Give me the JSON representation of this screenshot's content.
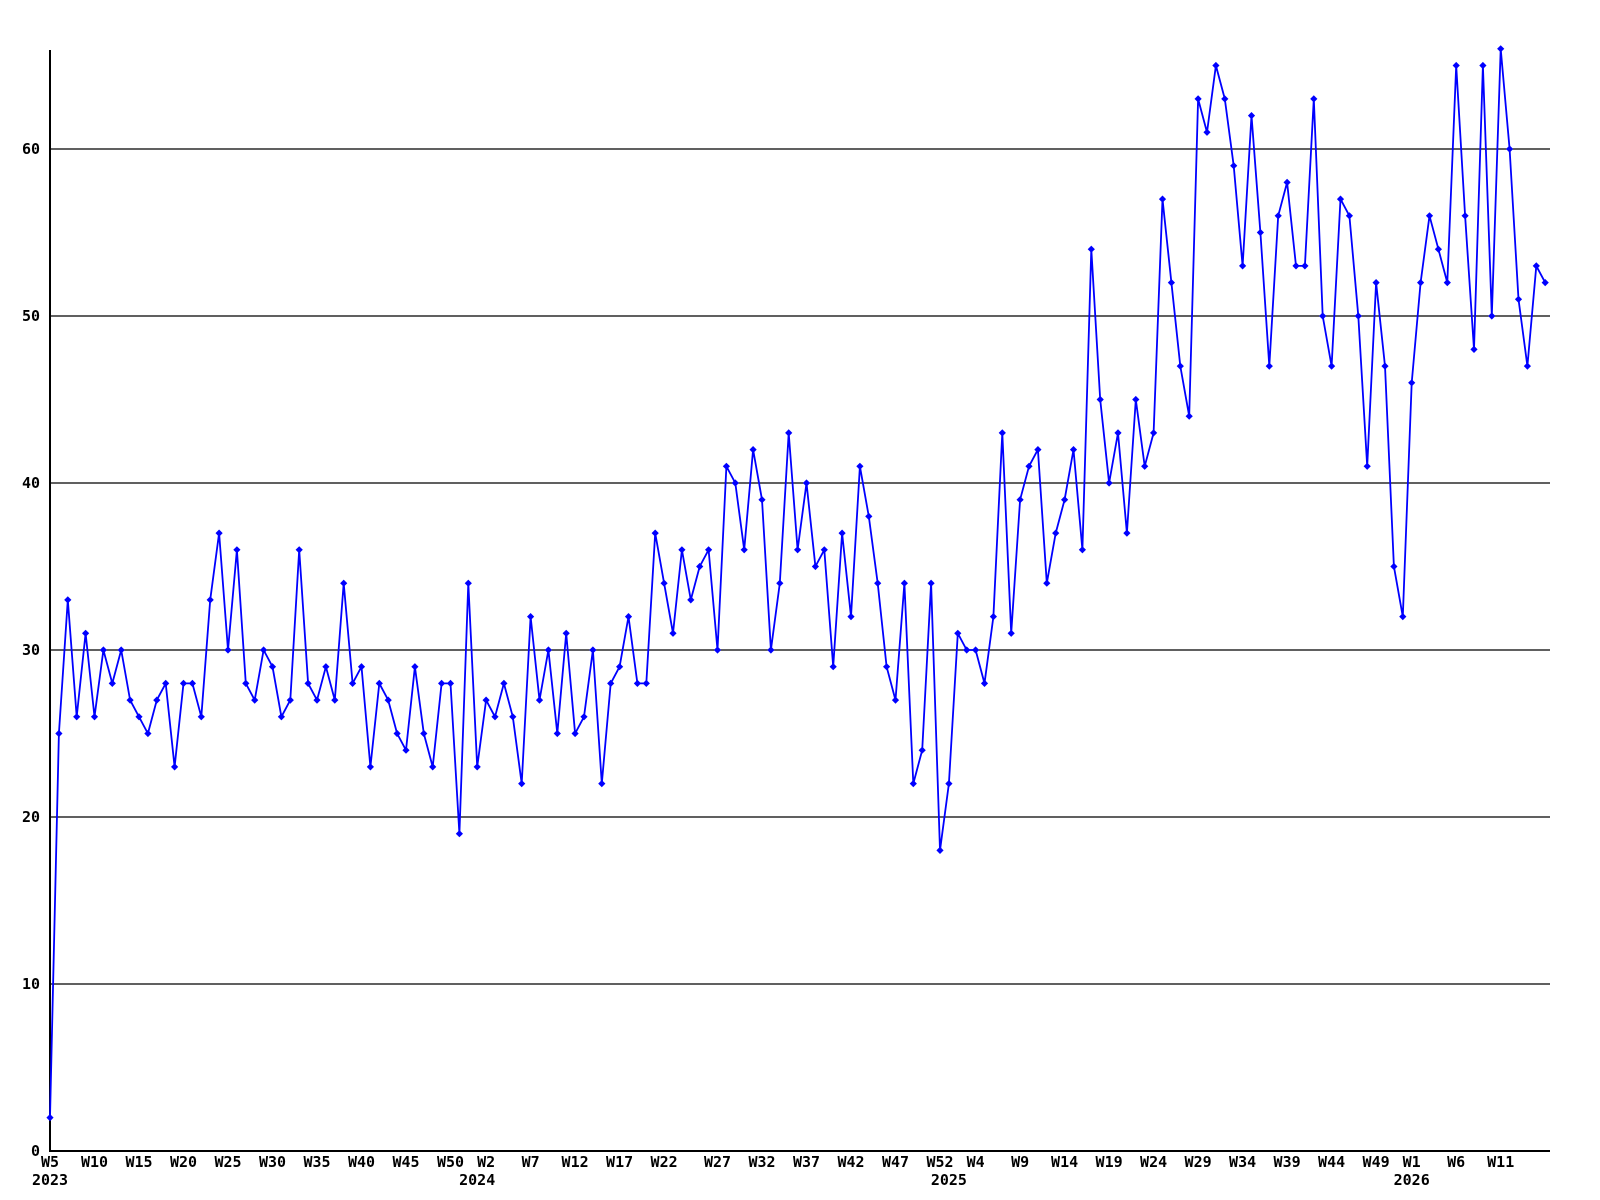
{
  "chart_data": {
    "type": "line",
    "title": "",
    "xlabel": "",
    "ylabel": "",
    "legend": "none",
    "grid": true,
    "background_color": "#ffffff",
    "line_color": "#0000ff",
    "marker": "diamond",
    "axis_color": "#000000",
    "grid_color": "#000000",
    "ylim": [
      0,
      67
    ],
    "y_ticks": [
      0,
      10,
      20,
      30,
      40,
      50,
      60
    ],
    "x_axis_description": "ISO weeks from W5 2023 to W12 2026, one data point per week",
    "x_tick_labels": [
      {
        "label": "W5",
        "week": 0
      },
      {
        "label": "W10",
        "week": 5
      },
      {
        "label": "W15",
        "week": 10
      },
      {
        "label": "W20",
        "week": 15
      },
      {
        "label": "W25",
        "week": 20
      },
      {
        "label": "W30",
        "week": 25
      },
      {
        "label": "W35",
        "week": 30
      },
      {
        "label": "W40",
        "week": 35
      },
      {
        "label": "W45",
        "week": 40
      },
      {
        "label": "W50",
        "week": 45
      },
      {
        "label": "W2",
        "week": 49
      },
      {
        "label": "W7",
        "week": 54
      },
      {
        "label": "W12",
        "week": 59
      },
      {
        "label": "W17",
        "week": 64
      },
      {
        "label": "W22",
        "week": 69
      },
      {
        "label": "W27",
        "week": 75
      },
      {
        "label": "W32",
        "week": 80
      },
      {
        "label": "W37",
        "week": 85
      },
      {
        "label": "W42",
        "week": 90
      },
      {
        "label": "W47",
        "week": 95
      },
      {
        "label": "W52",
        "week": 100
      },
      {
        "label": "W4",
        "week": 104
      },
      {
        "label": "W9",
        "week": 109
      },
      {
        "label": "W14",
        "week": 114
      },
      {
        "label": "W19",
        "week": 119
      },
      {
        "label": "W24",
        "week": 124
      },
      {
        "label": "W29",
        "week": 129
      },
      {
        "label": "W34",
        "week": 134
      },
      {
        "label": "W39",
        "week": 139
      },
      {
        "label": "W44",
        "week": 144
      },
      {
        "label": "W49",
        "week": 149
      },
      {
        "label": "W1",
        "week": 153
      },
      {
        "label": "W6",
        "week": 158
      },
      {
        "label": "W11",
        "week": 163
      }
    ],
    "year_labels": [
      {
        "label": "2023",
        "week": 0
      },
      {
        "label": "2024",
        "week": 48
      },
      {
        "label": "2025",
        "week": 101
      },
      {
        "label": "2026",
        "week": 153
      }
    ],
    "values": [
      2,
      25,
      33,
      26,
      31,
      26,
      30,
      28,
      30,
      27,
      26,
      25,
      27,
      28,
      23,
      28,
      28,
      26,
      33,
      37,
      30,
      36,
      28,
      27,
      30,
      29,
      26,
      27,
      36,
      28,
      27,
      29,
      27,
      34,
      28,
      29,
      23,
      28,
      27,
      25,
      24,
      29,
      25,
      23,
      28,
      28,
      19,
      34,
      23,
      27,
      26,
      28,
      26,
      22,
      32,
      27,
      30,
      25,
      31,
      25,
      26,
      30,
      22,
      28,
      29,
      32,
      28,
      28,
      37,
      34,
      31,
      36,
      33,
      35,
      36,
      30,
      41,
      40,
      36,
      42,
      39,
      30,
      34,
      43,
      36,
      40,
      35,
      36,
      29,
      37,
      32,
      41,
      38,
      34,
      29,
      27,
      34,
      22,
      24,
      34,
      18,
      22,
      31,
      30,
      30,
      28,
      32,
      43,
      31,
      39,
      41,
      42,
      34,
      37,
      39,
      42,
      36,
      54,
      45,
      40,
      43,
      37,
      45,
      41,
      43,
      57,
      52,
      47,
      44,
      63,
      61,
      65,
      63,
      59,
      53,
      62,
      55,
      47,
      56,
      58,
      53,
      53,
      63,
      50,
      47,
      57,
      56,
      50,
      41,
      52,
      47,
      35,
      32,
      46,
      52,
      56,
      54,
      52,
      65,
      56,
      48,
      65,
      50,
      66,
      60,
      51,
      47,
      53,
      52
    ]
  }
}
